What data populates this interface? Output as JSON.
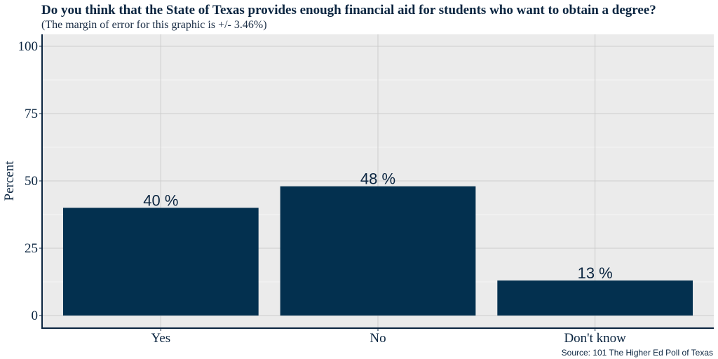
{
  "chart_data": {
    "type": "bar",
    "title": "Do you think that the State of Texas provides enough financial aid for students who want to obtain a degree?",
    "subtitle": "(The margin of error for this graphic is +/- 3.46%)",
    "xlabel": "",
    "ylabel": "Percent",
    "categories": [
      "Yes",
      "No",
      "Don't know"
    ],
    "values": [
      40,
      48,
      13
    ],
    "value_labels": [
      "40 %",
      "48 %",
      "13 %"
    ],
    "ylim": [
      0,
      100
    ],
    "yticks": [
      0,
      25,
      50,
      75,
      100
    ],
    "grid": true,
    "bar_color": "#03304f",
    "panel_color": "#ebebeb",
    "grid_color": "#cccccc",
    "axis_color": "#0b2540",
    "source": "Source: 101 The Higher Ed Poll of Texas"
  }
}
